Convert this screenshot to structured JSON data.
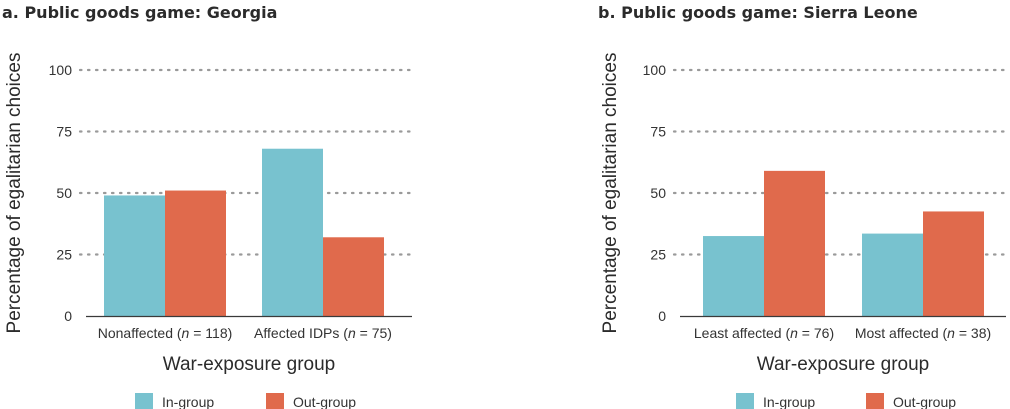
{
  "chart_data": [
    {
      "type": "bar",
      "title": "a. Public goods game: Georgia",
      "xlabel": "War-exposure group",
      "ylabel": "Percentage of egalitarian choices",
      "ylim": [
        0,
        100
      ],
      "yticks": [
        0,
        25,
        50,
        75,
        100
      ],
      "grid": true,
      "categories": [
        "Nonaffected (n = 118)",
        "Affected IDPs (n = 75)"
      ],
      "category_parts": [
        {
          "pre": "Nonaffected (",
          "n": "n",
          "post": " = 118)"
        },
        {
          "pre": "Affected IDPs (",
          "n": "n",
          "post": " = 75)"
        }
      ],
      "series": [
        {
          "name": "In-group",
          "color": "#78c2cf",
          "values": [
            49,
            68
          ]
        },
        {
          "name": "Out-group",
          "color": "#e06a4c",
          "values": [
            51,
            32
          ]
        }
      ],
      "legend_position": "bottom"
    },
    {
      "type": "bar",
      "title": "b. Public goods game: Sierra Leone",
      "xlabel": "War-exposure group",
      "ylabel": "Percentage of egalitarian choices",
      "ylim": [
        0,
        100
      ],
      "yticks": [
        0,
        25,
        50,
        75,
        100
      ],
      "grid": true,
      "categories": [
        "Least affected (n = 76)",
        "Most affected (n = 38)"
      ],
      "category_parts": [
        {
          "pre": "Least affected (",
          "n": "n",
          "post": " = 76)"
        },
        {
          "pre": "Most affected (",
          "n": "n",
          "post": " = 38)"
        }
      ],
      "series": [
        {
          "name": "In-group",
          "color": "#78c2cf",
          "values": [
            32.5,
            33.5
          ]
        },
        {
          "name": "Out-group",
          "color": "#e06a4c",
          "values": [
            59,
            42.5
          ]
        }
      ],
      "legend_position": "bottom"
    }
  ]
}
